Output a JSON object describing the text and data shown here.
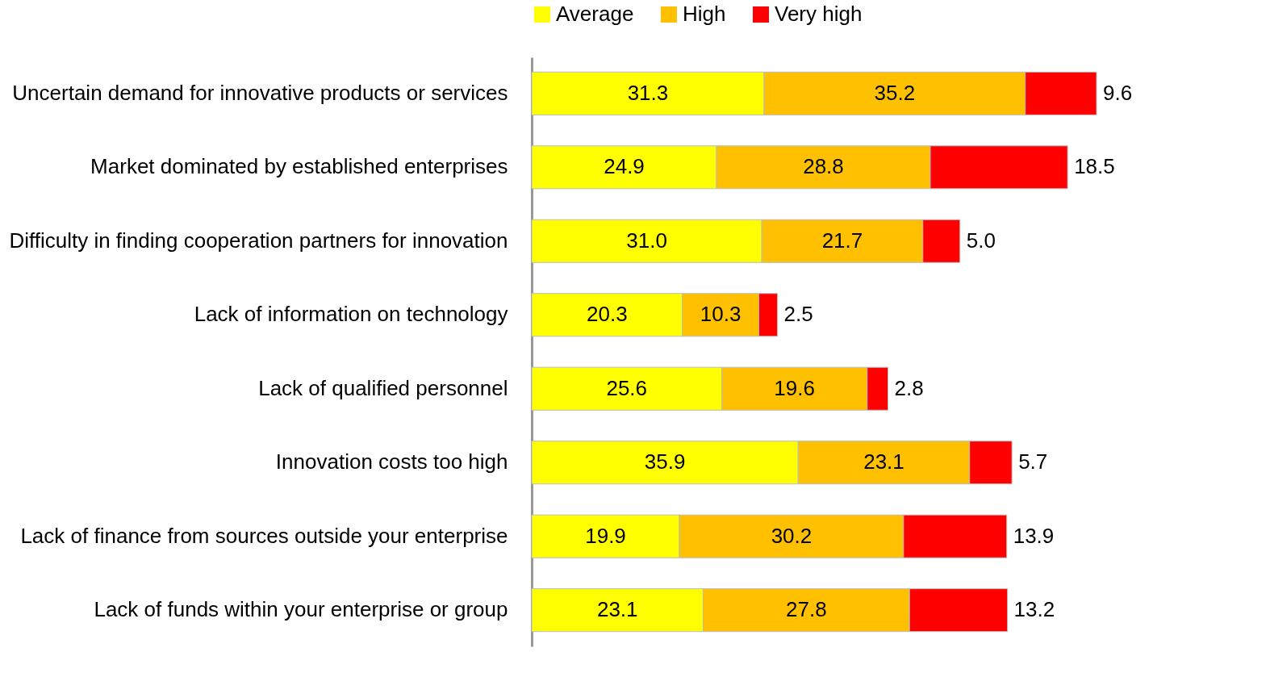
{
  "chart_data": {
    "type": "bar",
    "orientation": "horizontal",
    "stacked": true,
    "legend": "top",
    "grid": false,
    "categories": [
      "Uncertain demand for innovative products or services",
      "Market dominated by established enterprises",
      "Difficulty in finding cooperation partners for innovation",
      "Lack of information on technology",
      "Lack of qualified personnel",
      "Innovation costs too high",
      "Lack of finance from sources outside your enterprise",
      "Lack of funds within your enterprise or group"
    ],
    "series": [
      {
        "name": "Average",
        "color": "#ffff00",
        "values": [
          31.3,
          24.9,
          31.0,
          20.3,
          25.6,
          35.9,
          19.9,
          23.1
        ],
        "value_labels": [
          "31.3",
          "24.9",
          "31.0",
          "20.3",
          "25.6",
          "35.9",
          "19.9",
          "23.1"
        ]
      },
      {
        "name": "High",
        "color": "#ffc000",
        "values": [
          35.2,
          28.8,
          21.7,
          10.3,
          19.6,
          23.1,
          30.2,
          27.8
        ],
        "value_labels": [
          "35.2",
          "28.8",
          "21.7",
          "10.3",
          "19.6",
          "23.1",
          "30.2",
          "27.8"
        ]
      },
      {
        "name": "Very high",
        "color": "#ff0000",
        "values": [
          9.6,
          18.5,
          5.0,
          2.5,
          2.8,
          5.7,
          13.9,
          13.2
        ],
        "value_labels": [
          "9.6",
          "18.5",
          "5.0",
          "2.5",
          "2.8",
          "5.7",
          "13.9",
          "13.2"
        ]
      }
    ]
  }
}
